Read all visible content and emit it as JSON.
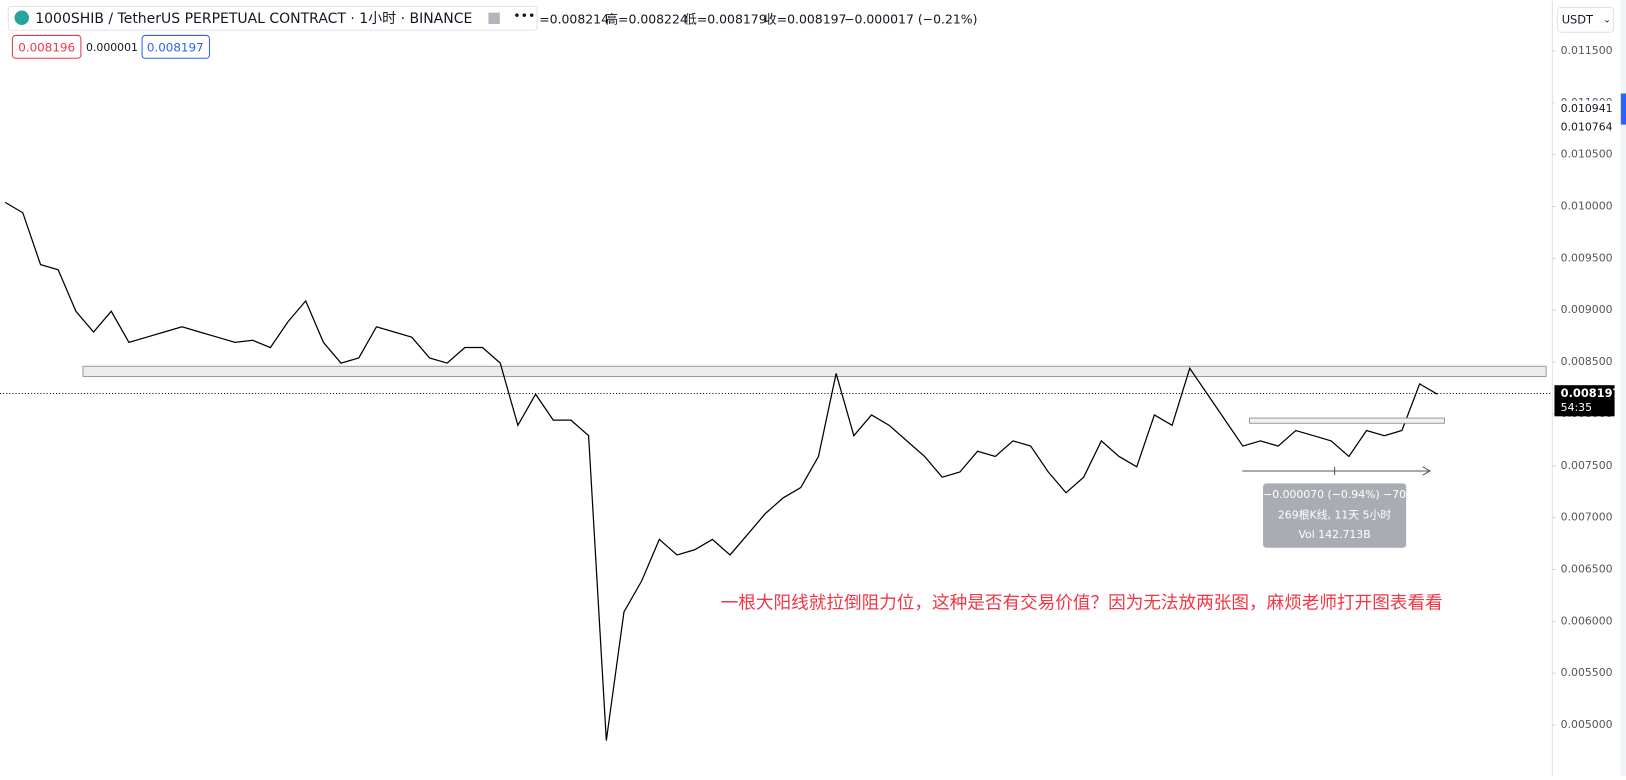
{
  "chart_data": {
    "type": "line",
    "title": "1000SHIB / TetherUS PERPETUAL CONTRACT · 1小时 · BINANCE",
    "ohlc": [
      "=0.008214",
      "高=0.008224",
      "低=0.008179",
      "收=0.008197"
    ],
    "change": "−0.000017 (−0.21%)",
    "bid": 0.008196,
    "spread": 1e-06,
    "ask": 0.008197,
    "currency": "USDT",
    "current_price": 0.008197,
    "countdown": "54:35",
    "marked_levels": [
      0.010941,
      0.010764
    ],
    "resistance_zone": [
      0.00836,
      0.00846
    ],
    "measure": [
      "−0.000070 (−0.94%) −70",
      "269根K线, 11天 5小时",
      "Vol 142.713B"
    ],
    "annotation": "一根大阳线就拉倒阻力位，这种是否有交易价值？因为无法放两张图，麻烦老师打开图表看看",
    "color": "#000000",
    "values": [
      0.01004,
      0.00994,
      0.00944,
      0.00939,
      0.00899,
      0.00879,
      0.00899,
      0.00869,
      0.00874,
      0.00879,
      0.00884,
      0.00879,
      0.00874,
      0.00869,
      0.00871,
      0.00864,
      0.00889,
      0.00909,
      0.00869,
      0.00849,
      0.00854,
      0.00884,
      0.00879,
      0.00874,
      0.00854,
      0.00849,
      0.00864,
      0.00864,
      0.00849,
      0.00789,
      0.00819,
      0.00794,
      0.00794,
      0.00779,
      0.00485,
      0.00609,
      0.00639,
      0.00679,
      0.00664,
      0.00669,
      0.00679,
      0.00664,
      0.00684,
      0.00704,
      0.00719,
      0.00729,
      0.00759,
      0.00839,
      0.00779,
      0.00799,
      0.00789,
      0.00774,
      0.00759,
      0.00739,
      0.00744,
      0.00764,
      0.00759,
      0.00774,
      0.00769,
      0.00744,
      0.00724,
      0.00739,
      0.00774,
      0.00759,
      0.00749,
      0.00799,
      0.00789,
      0.00844,
      0.00819,
      0.00794,
      0.00769,
      0.00774,
      0.00769,
      0.00784,
      0.00779,
      0.00774,
      0.00759,
      0.00784,
      0.00779,
      0.00784,
      0.00829,
      0.00819
    ],
    "ylim": [
      0.00451,
      0.01199
    ],
    "yticks": [
      {
        "value": 0.0115,
        "label": "0.011500"
      },
      {
        "value": 0.011,
        "label": "0.011000"
      },
      {
        "value": 0.0105,
        "label": "0.010500"
      },
      {
        "value": 0.01,
        "label": "0.010000"
      },
      {
        "value": 0.0095,
        "label": "0.009500"
      },
      {
        "value": 0.009,
        "label": "0.009000"
      },
      {
        "value": 0.0085,
        "label": "0.008500"
      },
      {
        "value": 0.008,
        "label": "0.008000"
      },
      {
        "value": 0.0075,
        "label": "0.007500"
      },
      {
        "value": 0.007,
        "label": "0.007000"
      },
      {
        "value": 0.0065,
        "label": "0.006500"
      },
      {
        "value": 0.006,
        "label": "0.006000"
      },
      {
        "value": 0.0055,
        "label": "0.005500"
      },
      {
        "value": 0.005,
        "label": "0.005000"
      }
    ]
  }
}
